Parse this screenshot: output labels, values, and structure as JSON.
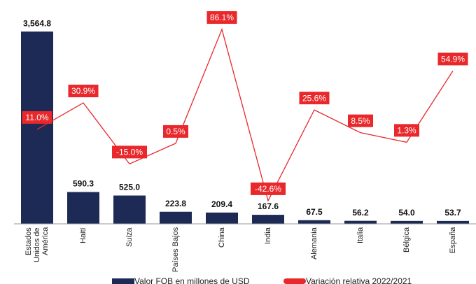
{
  "chart_data": {
    "type": "bar",
    "categories": [
      "Estados Unidos de América",
      "Haití",
      "Suiza",
      "Países Bajos",
      "China",
      "India",
      "Alemania",
      "Italia",
      "Bélgica",
      "España"
    ],
    "series": [
      {
        "name": "Valor FOB en millones de USD",
        "type": "bar",
        "color": "#1c2a55",
        "values": [
          3564.8,
          590.3,
          525.0,
          223.8,
          209.4,
          167.6,
          67.5,
          56.2,
          54.0,
          53.7
        ],
        "value_labels": [
          "3,564.8",
          "590.3",
          "525.0",
          "223.8",
          "209.4",
          "167.6",
          "67.5",
          "56.2",
          "54.0",
          "53.7"
        ]
      },
      {
        "name": "Variación relativa 2022/2021",
        "type": "line",
        "axis": "y2",
        "color": "#e8282b",
        "values": [
          11.0,
          30.9,
          -15.0,
          0.5,
          86.1,
          -42.6,
          25.6,
          8.5,
          1.3,
          54.9
        ],
        "value_labels": [
          "11.0%",
          "30.9%",
          "-15.0%",
          "0.5%",
          "86.1%",
          "-42.6%",
          "25.6%",
          "8.5%",
          "1.3%",
          "54.9%"
        ]
      }
    ],
    "ylim": [
      0,
      3800
    ],
    "y2lim": [
      -60,
      94
    ],
    "legend": "bottom"
  }
}
